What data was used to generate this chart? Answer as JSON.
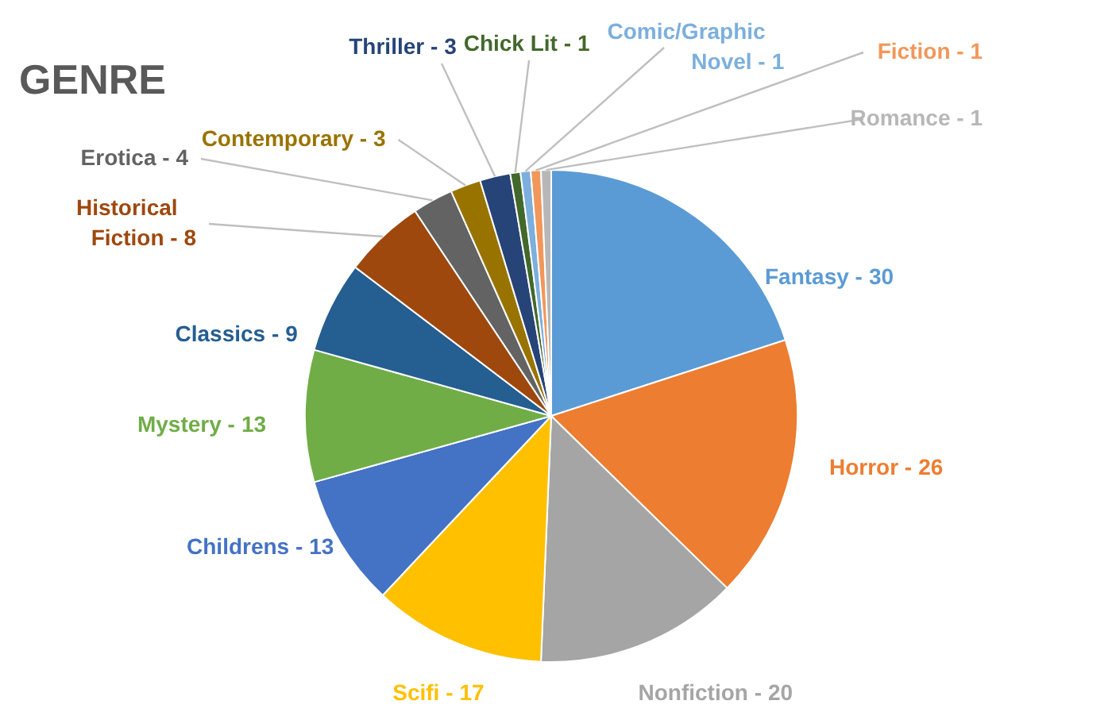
{
  "chart_data": {
    "type": "pie",
    "title": "GENRE",
    "categories": [
      "Fantasy -",
      "Horror -",
      "Nonfiction -",
      "Scifi -",
      "Childrens -",
      "Mystery -",
      "Classics -",
      "Historical Fiction -",
      "Erotica -",
      "Contemporary -",
      "Thriller -",
      "Chick Lit -",
      "Comic/Graphic Novel -",
      "Fiction -",
      "Romance -"
    ],
    "values": [
      30,
      26,
      20,
      17,
      13,
      13,
      9,
      8,
      4,
      3,
      3,
      1,
      1,
      1,
      1
    ],
    "colors": [
      "#5b9bd5",
      "#ed7d31",
      "#a5a5a5",
      "#ffc000",
      "#4472c4",
      "#70ad47",
      "#255e91",
      "#9e480e",
      "#636363",
      "#997300",
      "#264478",
      "#43682b",
      "#7cafdd",
      "#f1975a",
      "#b7b7b7"
    ],
    "data_labels": true
  }
}
